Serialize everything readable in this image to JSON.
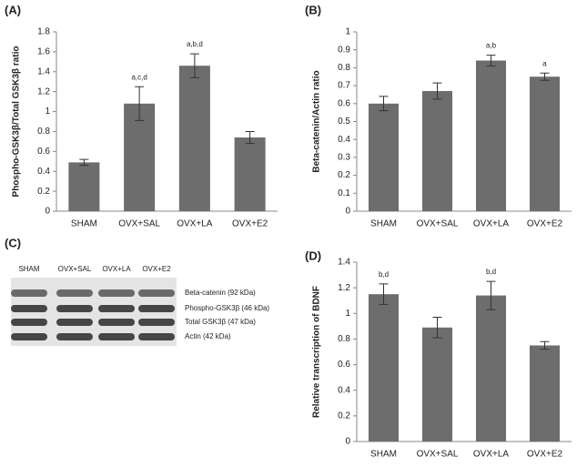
{
  "chart_data": [
    {
      "type": "bar",
      "panel": "(A)",
      "ylabel": "Phospho-GSK3β/Total GSK3β ratio",
      "categories": [
        "SHAM",
        "OVX+SAL",
        "OVX+LA",
        "OVX+E2"
      ],
      "values": [
        0.49,
        1.08,
        1.46,
        0.74
      ],
      "errors": [
        0.03,
        0.17,
        0.12,
        0.06
      ],
      "annotations": [
        null,
        "a,c,d",
        "a,b,d",
        null
      ],
      "color": "#6d6d6d",
      "ylim": [
        0,
        1.8
      ],
      "yticks": [
        0,
        0.2,
        0.4,
        0.6,
        0.8,
        1,
        1.2,
        1.4,
        1.6,
        1.8
      ]
    },
    {
      "type": "bar",
      "panel": "(B)",
      "ylabel": "Beta-catenin/Actin ratio",
      "categories": [
        "SHAM",
        "OVX+SAL",
        "OVX+LA",
        "OVX+E2"
      ],
      "values": [
        0.6,
        0.67,
        0.84,
        0.75
      ],
      "errors": [
        0.04,
        0.045,
        0.03,
        0.02
      ],
      "annotations": [
        null,
        null,
        "a,b",
        "a"
      ],
      "color": "#6d6d6d",
      "ylim": [
        0,
        1
      ],
      "yticks": [
        0,
        0.1,
        0.2,
        0.3,
        0.4,
        0.5,
        0.6,
        0.7,
        0.8,
        0.9,
        1
      ]
    },
    {
      "type": "bar",
      "panel": "(D)",
      "ylabel": "Relative transcription of BDNF",
      "categories": [
        "SHAM",
        "OVX+SAL",
        "OVX+LA",
        "OVX+E2"
      ],
      "values": [
        1.15,
        0.89,
        1.14,
        0.75
      ],
      "errors": [
        0.08,
        0.08,
        0.11,
        0.03
      ],
      "annotations": [
        "b,d",
        null,
        "b,d",
        null
      ],
      "color": "#6d6d6d",
      "ylim": [
        0,
        1.4
      ],
      "yticks": [
        0,
        0.2,
        0.4,
        0.6,
        0.8,
        1,
        1.2,
        1.4
      ]
    }
  ],
  "blot": {
    "panel": "(C)",
    "lanes": [
      "SHAM",
      "OVX+SAL",
      "OVX+LA",
      "OVX+E2"
    ],
    "rows": [
      "Beta-catenin (92 kDa)",
      "Phospho-GSK3β (46 kDa)",
      "Total GSK3β (47 kDa)",
      "Actin (42 kDa)"
    ]
  }
}
